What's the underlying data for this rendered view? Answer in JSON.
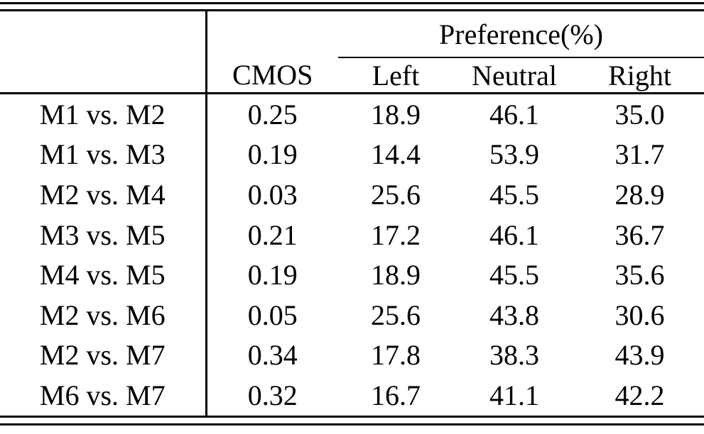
{
  "page": {
    "background_color": "#ffffff",
    "text_color": "#000000"
  },
  "table": {
    "group_header": "Preference(%)",
    "col_headers": {
      "label": "",
      "cmos": "CMOS",
      "left": "Left",
      "neutral": "Neutral",
      "right": "Right"
    },
    "rows": [
      {
        "label": "M1 vs. M2",
        "cmos": "0.25",
        "left": "18.9",
        "neutral": "46.1",
        "right": "35.0"
      },
      {
        "label": "M1 vs. M3",
        "cmos": "0.19",
        "left": "14.4",
        "neutral": "53.9",
        "right": "31.7"
      },
      {
        "label": "M2 vs. M4",
        "cmos": "0.03",
        "left": "25.6",
        "neutral": "45.5",
        "right": "28.9"
      },
      {
        "label": "M3 vs. M5",
        "cmos": "0.21",
        "left": "17.2",
        "neutral": "46.1",
        "right": "36.7"
      },
      {
        "label": "M4 vs. M5",
        "cmos": "0.19",
        "left": "18.9",
        "neutral": "45.5",
        "right": "35.6"
      },
      {
        "label": "M2 vs. M6",
        "cmos": "0.05",
        "left": "25.6",
        "neutral": "43.8",
        "right": "30.6"
      },
      {
        "label": "M2 vs. M7",
        "cmos": "0.34",
        "left": "17.8",
        "neutral": "38.3",
        "right": "43.9"
      },
      {
        "label": "M6 vs. M7",
        "cmos": "0.32",
        "left": "16.7",
        "neutral": "41.1",
        "right": "42.2"
      }
    ]
  }
}
